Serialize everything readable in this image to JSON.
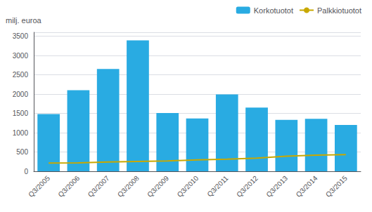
{
  "chart_data": {
    "type": "bar",
    "ylabel": "milj. euroa",
    "categories": [
      "Q3/2005",
      "Q3/2006",
      "Q3/2007",
      "Q3/2008",
      "Q3/2009",
      "Q3/2010",
      "Q3/2011",
      "Q3/2012",
      "Q3/2013",
      "Q3/2014",
      "Q3/2015"
    ],
    "series": [
      {
        "name": "Korkotuotot",
        "type": "bar",
        "color": "#29ABE2",
        "values": [
          1480,
          2100,
          2650,
          3390,
          1510,
          1370,
          1990,
          1650,
          1330,
          1360,
          1200
        ]
      },
      {
        "name": "Palkkiotuotot",
        "type": "line",
        "color": "#C8A800",
        "values": [
          215,
          220,
          240,
          255,
          270,
          295,
          315,
          340,
          390,
          420,
          430
        ]
      }
    ],
    "ylim": [
      0,
      3600
    ],
    "yticks": [
      0,
      500,
      1000,
      1500,
      2000,
      2500,
      3000,
      3500
    ],
    "grid": true,
    "legend": "upper right"
  }
}
